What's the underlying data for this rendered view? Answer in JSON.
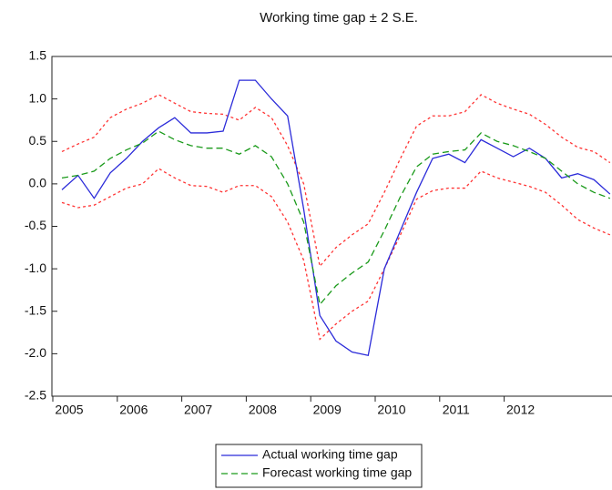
{
  "chart_data": {
    "type": "line",
    "title": "Working time gap ± 2 S.E.",
    "categories": [
      "2005",
      null,
      null,
      null,
      "2006",
      null,
      null,
      null,
      "2007",
      null,
      null,
      null,
      "2008",
      null,
      null,
      null,
      "2009",
      null,
      null,
      null,
      "2010",
      null,
      null,
      null,
      "2011",
      null,
      null,
      null,
      "2012",
      null,
      null,
      null,
      null,
      null,
      null
    ],
    "series": [
      {
        "color": "#ff3333",
        "dash": "dot",
        "values": [
          0.38,
          0.47,
          0.55,
          0.78,
          0.88,
          0.95,
          1.05,
          0.95,
          0.85,
          0.83,
          0.82,
          0.75,
          0.9,
          0.78,
          0.45,
          0.0,
          -0.97,
          -0.75,
          -0.6,
          -0.47,
          -0.1,
          0.3,
          0.68,
          0.8,
          0.8,
          0.85,
          1.05,
          0.95,
          0.88,
          0.82,
          0.7,
          0.55,
          0.43,
          0.38,
          0.25
        ]
      },
      {
        "color": "#ff3333",
        "dash": "dot",
        "values": [
          -0.22,
          -0.28,
          -0.25,
          -0.15,
          -0.05,
          0.0,
          0.18,
          0.07,
          -0.02,
          -0.03,
          -0.1,
          -0.02,
          -0.02,
          -0.15,
          -0.45,
          -0.9,
          -1.83,
          -1.65,
          -1.5,
          -1.38,
          -1.0,
          -0.6,
          -0.18,
          -0.08,
          -0.05,
          -0.05,
          0.15,
          0.07,
          0.02,
          -0.03,
          -0.1,
          -0.25,
          -0.42,
          -0.52,
          -0.6
        ]
      },
      {
        "name": "Actual working time gap",
        "color": "#2b2bd9",
        "dash": "solid",
        "values": [
          -0.07,
          0.1,
          -0.17,
          0.13,
          0.3,
          0.5,
          0.66,
          0.78,
          0.6,
          0.6,
          0.62,
          1.22,
          1.22,
          1.0,
          0.8,
          -0.3,
          -1.55,
          -1.85,
          -1.98,
          -2.02,
          -1.0,
          -0.55,
          -0.1,
          0.3,
          0.35,
          0.25,
          0.52,
          0.42,
          0.32,
          0.42,
          0.3,
          0.07,
          0.12,
          0.05,
          -0.12
        ]
      },
      {
        "name": "Forecast working time gap",
        "color": "#1a9a1a",
        "dash": "dash",
        "values": [
          0.07,
          0.1,
          0.15,
          0.3,
          0.4,
          0.48,
          0.62,
          0.52,
          0.45,
          0.42,
          0.42,
          0.35,
          0.45,
          0.32,
          0.0,
          -0.45,
          -1.42,
          -1.2,
          -1.05,
          -0.92,
          -0.55,
          -0.15,
          0.2,
          0.35,
          0.38,
          0.4,
          0.6,
          0.5,
          0.45,
          0.38,
          0.3,
          0.15,
          0.0,
          -0.1,
          -0.17
        ]
      }
    ],
    "ylim": [
      -2.5,
      1.5
    ],
    "yticks": [
      1.5,
      {
        "value": 1.0,
        "label": "1.0"
      },
      0.5,
      {
        "value": 0.0,
        "label": "0.0"
      },
      -0.5,
      {
        "value": -1.0,
        "label": "-1.0"
      },
      -1.5,
      {
        "value": -2.0,
        "label": "-2.0"
      },
      -2.5
    ],
    "legend": "bottom"
  }
}
